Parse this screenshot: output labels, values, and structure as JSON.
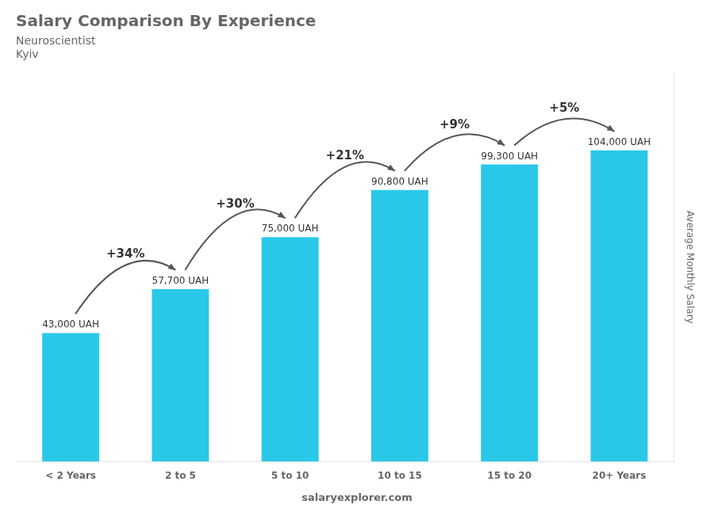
{
  "chart_data": {
    "type": "bar",
    "title": "Salary Comparison By Experience",
    "subtitle": [
      "Neuroscientist",
      "Kyiv"
    ],
    "ylabel": "Average Monthly Salary",
    "categories": [
      "< 2 Years",
      "2 to 5",
      "5 to 10",
      "10 to 15",
      "15 to 20",
      "20+ Years"
    ],
    "values": [
      43000,
      57700,
      75000,
      90800,
      99300,
      104000
    ],
    "value_labels": [
      "43,000 UAH",
      "57,700 UAH",
      "75,000 UAH",
      "90,800 UAH",
      "99,300 UAH",
      "104,000 UAH"
    ],
    "data_labels": true,
    "color": "#29C8E8",
    "ylim": [
      0,
      130000
    ],
    "grid": false,
    "tick_labels": "x",
    "annotations": [
      {
        "text": "+34%",
        "from": "< 2 Years",
        "to": "2 to 5"
      },
      {
        "text": "+30%",
        "from": "2 to 5",
        "to": "5 to 10"
      },
      {
        "text": "+21%",
        "from": "5 to 10",
        "to": "10 to 15"
      },
      {
        "text": "+9%",
        "from": "10 to 15",
        "to": "15 to 20"
      },
      {
        "text": "+5%",
        "from": "15 to 20",
        "to": "20+ Years"
      }
    ],
    "source": "salaryexplorer.com"
  }
}
